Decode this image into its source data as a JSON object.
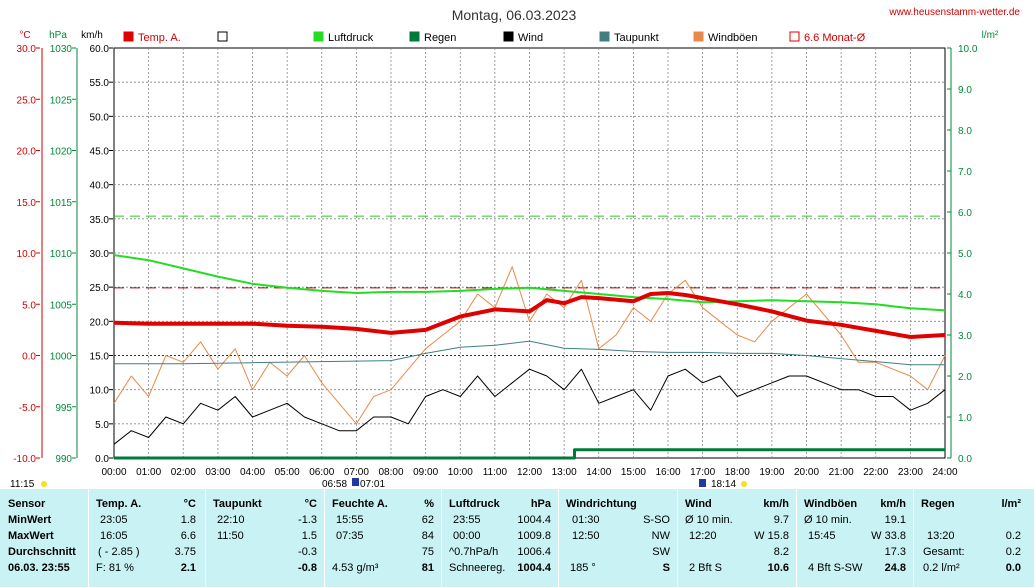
{
  "header": {
    "title": "Montag, 06.03.2023",
    "url": "www.heusenstamm-wetter.de",
    "unit_temp": "°C",
    "unit_pressure": "hPa",
    "unit_wind": "km/h",
    "unit_rain": "l/m²"
  },
  "legend": [
    {
      "label": "Temp. A.",
      "color": "#e00000",
      "filled": true
    },
    {
      "label": "",
      "color": "#000000",
      "filled": false
    },
    {
      "label": "Luftdruck",
      "color": "#22dd22",
      "filled": true
    },
    {
      "label": "Regen",
      "color": "#007a3a",
      "filled": true
    },
    {
      "label": "Wind",
      "color": "#000000",
      "filled": true
    },
    {
      "label": "Taupunkt",
      "color": "#3f7f80",
      "filled": true
    },
    {
      "label": "Windböen",
      "color": "#e98a4a",
      "filled": true
    },
    {
      "label": "6.6 Monat-Ø",
      "color": "#e00000",
      "filled": false
    }
  ],
  "markers": {
    "sunrise_time": "11:15",
    "moon_label": "06:58",
    "moon_label2": "07:01",
    "sunset_label": "18:14"
  },
  "chart_data": {
    "type": "line",
    "title": "Montag, 06.03.2023",
    "x_ticks": [
      "00:00",
      "01:00",
      "02:00",
      "03:00",
      "04:00",
      "05:00",
      "06:00",
      "07:00",
      "08:00",
      "09:00",
      "10:00",
      "11:00",
      "12:00",
      "13:00",
      "14:00",
      "15:00",
      "16:00",
      "17:00",
      "18:00",
      "19:00",
      "20:00",
      "21:00",
      "22:00",
      "23:00",
      "24:00"
    ],
    "xlim": [
      0,
      24
    ],
    "axes": {
      "temp": {
        "label": "°C",
        "ylim": [
          -10,
          30
        ],
        "ticks": [
          "30.0",
          "25.0",
          "20.0",
          "15.0",
          "10.0",
          "5.0",
          "0.0",
          "-5.0",
          "-10.0"
        ]
      },
      "pressure": {
        "label": "hPa",
        "ylim": [
          990,
          1030
        ],
        "ticks": [
          "1030",
          "1025",
          "1020",
          "1015",
          "1010",
          "1005",
          "1000",
          "995",
          "990"
        ]
      },
      "wind": {
        "label": "km/h",
        "ylim": [
          0,
          60
        ],
        "ticks": [
          "60.0",
          "55.0",
          "50.0",
          "45.0",
          "40.0",
          "35.0",
          "30.0",
          "25.0",
          "20.0",
          "15.0",
          "10.0",
          "5.0",
          "0.0"
        ]
      },
      "rain": {
        "label": "l/m²",
        "ylim": [
          0,
          10
        ],
        "ticks": [
          "10.0",
          "9.0",
          "8.0",
          "7.0",
          "6.0",
          "5.0",
          "4.0",
          "3.0",
          "2.0",
          "1.0",
          "0.0"
        ]
      }
    },
    "reference_lines": [
      {
        "name": "6.6 Monat-Ø",
        "axis": "temp",
        "value": 6.6
      },
      {
        "name": "",
        "axis": "rain",
        "value": 5.9
      },
      {
        "name": "",
        "axis": "temp",
        "value": 0.0
      }
    ],
    "series": [
      {
        "name": "Temp. A.",
        "axis": "temp",
        "x": [
          0,
          1,
          2,
          3,
          4,
          5,
          6,
          7,
          8,
          9,
          10,
          11,
          12,
          12.5,
          13,
          13.5,
          14,
          15,
          15.5,
          16,
          16.5,
          17,
          18,
          19,
          20,
          21,
          22,
          23,
          24
        ],
        "y": [
          3.2,
          3.1,
          3.1,
          3.1,
          3.1,
          2.9,
          2.8,
          2.6,
          2.2,
          2.5,
          3.8,
          4.5,
          4.3,
          5.4,
          5.1,
          5.7,
          5.6,
          5.3,
          6.0,
          6.1,
          5.9,
          5.6,
          5.0,
          4.3,
          3.4,
          3.0,
          2.4,
          1.8,
          2.0
        ]
      },
      {
        "name": "Luftdruck",
        "axis": "pressure",
        "x": [
          0,
          1,
          2,
          3,
          4,
          5,
          6,
          7,
          8,
          9,
          10,
          11,
          12,
          13,
          14,
          15,
          16,
          17,
          18,
          19,
          20,
          21,
          22,
          23,
          24
        ],
        "y": [
          1009.8,
          1009.3,
          1008.5,
          1007.7,
          1007.0,
          1006.6,
          1006.3,
          1006.1,
          1006.2,
          1006.2,
          1006.3,
          1006.5,
          1006.6,
          1006.3,
          1006.0,
          1005.7,
          1005.5,
          1005.2,
          1005.3,
          1005.4,
          1005.3,
          1005.2,
          1005.0,
          1004.6,
          1004.4
        ]
      },
      {
        "name": "Taupunkt",
        "axis": "temp",
        "x": [
          0,
          2,
          4,
          6,
          8,
          9,
          10,
          11,
          12,
          13,
          14,
          15,
          16,
          17,
          18,
          19,
          20,
          21,
          22,
          23,
          24
        ],
        "y": [
          -0.8,
          -0.8,
          -0.7,
          -0.6,
          -0.5,
          0.2,
          0.8,
          1.0,
          1.4,
          0.7,
          0.6,
          0.4,
          0.3,
          0.3,
          0.2,
          0.2,
          0.0,
          -0.3,
          -0.6,
          -0.9,
          -0.9
        ]
      },
      {
        "name": "Wind",
        "axis": "wind",
        "x": [
          0,
          0.5,
          1,
          1.5,
          2,
          2.5,
          3,
          3.5,
          4,
          4.5,
          5,
          5.5,
          6,
          6.5,
          7,
          7.5,
          8,
          8.5,
          9,
          9.5,
          10,
          10.5,
          11,
          11.5,
          12,
          12.5,
          13,
          13.5,
          14,
          14.5,
          15,
          15.5,
          16,
          16.5,
          17,
          17.5,
          18,
          18.5,
          19,
          19.5,
          20,
          20.5,
          21,
          21.5,
          22,
          22.5,
          23,
          23.5,
          24
        ],
        "y": [
          2,
          4,
          3,
          6,
          5,
          8,
          7,
          9,
          6,
          7,
          8,
          6,
          5,
          4,
          4,
          6,
          6,
          5,
          9,
          10,
          9,
          12,
          9,
          11,
          13,
          12,
          10,
          13,
          8,
          9,
          10,
          7,
          12,
          13,
          11,
          12,
          9,
          10,
          11,
          12,
          12,
          11,
          10,
          10,
          9,
          9,
          7,
          8,
          10
        ]
      },
      {
        "name": "Windböen",
        "axis": "wind",
        "x": [
          0,
          0.5,
          1,
          1.5,
          2,
          2.5,
          3,
          3.5,
          4,
          4.5,
          5,
          5.5,
          6,
          6.5,
          7,
          7.5,
          8,
          8.5,
          9,
          9.5,
          10,
          10.5,
          11,
          11.5,
          12,
          12.5,
          13,
          13.5,
          14,
          14.5,
          15,
          15.5,
          16,
          16.5,
          17,
          17.5,
          18,
          18.5,
          19,
          19.5,
          20,
          20.5,
          21,
          21.5,
          22,
          22.5,
          23,
          23.5,
          24
        ],
        "y": [
          8,
          12,
          9,
          15,
          14,
          17,
          13,
          16,
          10,
          14,
          12,
          15,
          11,
          8,
          5,
          9,
          10,
          13,
          16,
          18,
          20,
          24,
          22,
          28,
          20,
          24,
          22,
          26,
          16,
          18,
          22,
          20,
          24,
          26,
          22,
          20,
          18,
          17,
          20,
          22,
          24,
          21,
          18,
          14,
          14,
          13,
          12,
          10,
          15
        ]
      },
      {
        "name": "Regen",
        "axis": "rain",
        "x": [
          0,
          13.3,
          13.3,
          24
        ],
        "y": [
          0.0,
          0.0,
          0.2,
          0.2
        ]
      }
    ]
  },
  "table": {
    "row_labels": {
      "sensor": "Sensor",
      "min": "MinWert",
      "max": "MaxWert",
      "avg": "Durchschnitt",
      "current": "06.03. 23:55"
    },
    "temp": {
      "title": "Temp. A.",
      "unit": "°C",
      "min_time": "23:05",
      "min": "1.8",
      "max_time": "16:05",
      "max": "6.6",
      "avg_note": "( - 2.85 )",
      "avg": "3.75",
      "cur_note": "F: 81 %",
      "cur": "2.1"
    },
    "dew": {
      "title": "Taupunkt",
      "unit": "°C",
      "min_time": "22:10",
      "min": "-1.3",
      "max_time": "11:50",
      "max": "1.5",
      "avg": "-0.3",
      "cur": "-0.8"
    },
    "hum": {
      "title": "Feuchte A.",
      "unit": "%",
      "min_time": "15:55",
      "min": "62",
      "max_time": "07:35",
      "max": "84",
      "avg": "75",
      "cur_note": "4.53 g/m³",
      "cur": "81"
    },
    "press": {
      "title": "Luftdruck",
      "unit": "hPa",
      "min_time": "23:55",
      "min": "1004.4",
      "max_time": "00:00",
      "max": "1009.8",
      "avg_note": "^0.7hPa/h",
      "avg": "1006.4",
      "cur_note": "Schneereg.",
      "cur": "1004.4"
    },
    "dir": {
      "title": "Windrichtung",
      "min_time": "01:30",
      "min": "S-SO",
      "max_time": "12:50",
      "max": "NW",
      "avg": "SW",
      "cur_note": "185 °",
      "cur": "S"
    },
    "wind": {
      "title": "Wind",
      "unit": "km/h",
      "min_time": "Ø 10 min.",
      "min": "9.7",
      "max_time": "12:20",
      "max": "W 15.8",
      "avg": "8.2",
      "cur_note": "2 Bft S",
      "cur": "10.6"
    },
    "gust": {
      "title": "Windböen",
      "unit": "km/h",
      "min_time": "Ø 10 min.",
      "min": "19.1",
      "max_time": "15:45",
      "max": "W 33.8",
      "avg": "17.3",
      "cur_note": "4 Bft S-SW",
      "cur": "24.8"
    },
    "rain": {
      "title": "Regen",
      "unit": "l/m²",
      "min_time": "13:20",
      "min": "0.2",
      "max_time": "Gesamt:",
      "max": "0.2",
      "avg": "0.0",
      "cur_note": "0.2 l/m²",
      "cur": "0.0"
    }
  }
}
